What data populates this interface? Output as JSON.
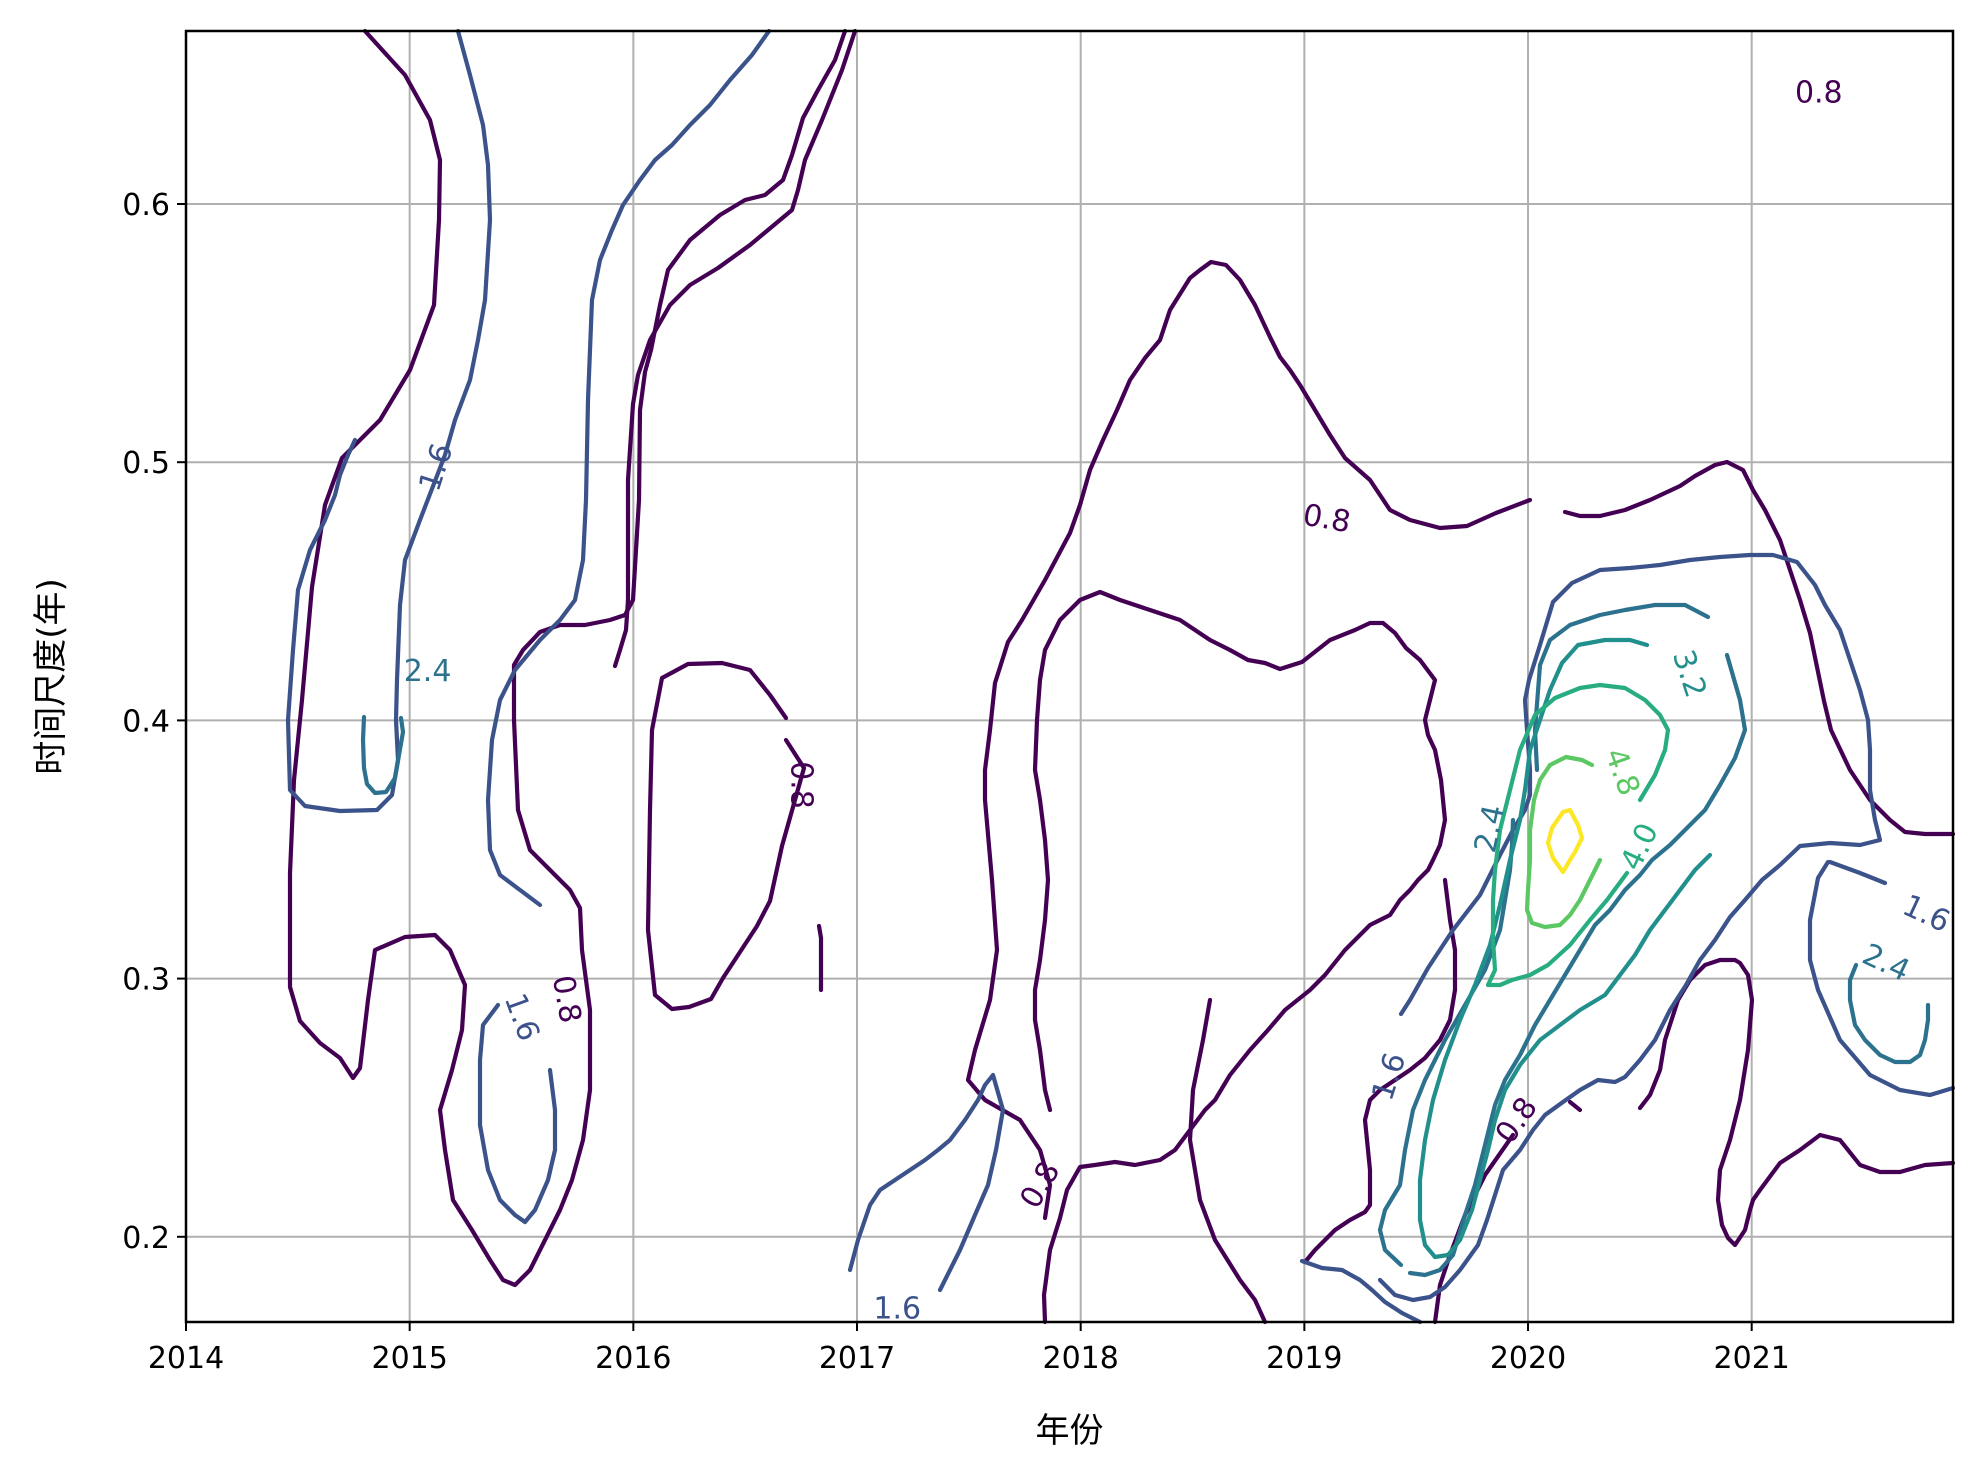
{
  "chart_data": {
    "type": "contour",
    "xlabel": "年份",
    "ylabel": "时间尺度(年)",
    "xlim": [
      2014,
      2021.9
    ],
    "ylim": [
      0.167,
      0.667
    ],
    "x_ticks": [
      2014,
      2015,
      2016,
      2017,
      2018,
      2019,
      2020,
      2021
    ],
    "y_ticks": [
      0.2,
      0.3,
      0.4,
      0.5,
      0.6
    ],
    "y_tick_labels": [
      "0.2",
      "0.3",
      "0.4",
      "0.5",
      "0.6"
    ],
    "grid": true,
    "colormap": "viridis",
    "levels": [
      {
        "value": 0.8,
        "color": "#440154"
      },
      {
        "value": 1.6,
        "color": "#3b528b"
      },
      {
        "value": 2.4,
        "color": "#2c728e"
      },
      {
        "value": 3.2,
        "color": "#21908d"
      },
      {
        "value": 4.0,
        "color": "#27ad81"
      },
      {
        "value": 4.8,
        "color": "#5cc863"
      },
      {
        "value": 5.6,
        "color": "#aadc32"
      },
      {
        "value": 6.4,
        "color": "#fde725"
      }
    ],
    "contour_labels": [
      {
        "text": "0.8",
        "x": 2021.3,
        "y": 0.643,
        "rot": 0,
        "level": 0.8
      },
      {
        "text": "0.8",
        "x": 2019.1,
        "y": 0.478,
        "rot": 10,
        "level": 0.8
      },
      {
        "text": "0.8",
        "x": 2016.75,
        "y": 0.375,
        "rot": 90,
        "level": 0.8
      },
      {
        "text": "0.8",
        "x": 2015.7,
        "y": 0.292,
        "rot": 80,
        "level": 0.8
      },
      {
        "text": "0.8",
        "x": 2017.82,
        "y": 0.22,
        "rot": -60,
        "level": 0.8
      },
      {
        "text": "0.8",
        "x": 2019.95,
        "y": 0.245,
        "rot": -55,
        "level": 0.8
      },
      {
        "text": "1.6",
        "x": 2015.12,
        "y": 0.498,
        "rot": -72,
        "level": 1.6
      },
      {
        "text": "1.6",
        "x": 2015.5,
        "y": 0.285,
        "rot": 70,
        "level": 1.6
      },
      {
        "text": "1.6",
        "x": 2017.18,
        "y": 0.172,
        "rot": 0,
        "level": 1.6
      },
      {
        "text": "1.6",
        "x": 2019.38,
        "y": 0.262,
        "rot": -72,
        "level": 1.6
      },
      {
        "text": "1.6",
        "x": 2021.78,
        "y": 0.325,
        "rot": 25,
        "level": 1.6
      },
      {
        "text": "2.4",
        "x": 2015.08,
        "y": 0.419,
        "rot": 0,
        "level": 2.4
      },
      {
        "text": "2.4",
        "x": 2019.83,
        "y": 0.358,
        "rot": -78,
        "level": 2.4
      },
      {
        "text": "2.4",
        "x": 2021.6,
        "y": 0.306,
        "rot": 25,
        "level": 2.4
      },
      {
        "text": "3.2",
        "x": 2020.72,
        "y": 0.418,
        "rot": 72,
        "level": 3.2
      },
      {
        "text": "4.0",
        "x": 2020.5,
        "y": 0.351,
        "rot": -65,
        "level": 4.0
      },
      {
        "text": "4.8",
        "x": 2020.42,
        "y": 0.38,
        "rot": 70,
        "level": 4.8
      }
    ]
  }
}
